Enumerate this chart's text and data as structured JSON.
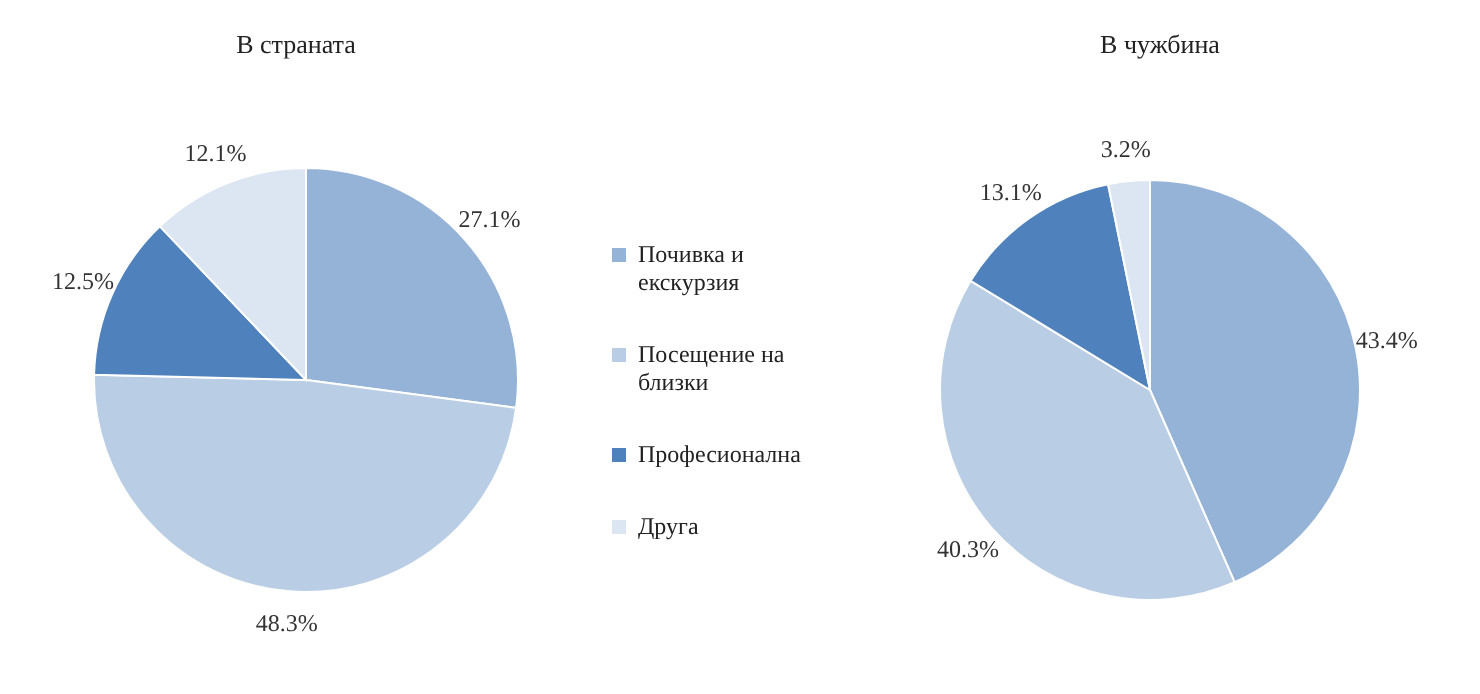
{
  "chart_data": [
    {
      "type": "pie",
      "title": "В страната",
      "categories": [
        "Почивка и екскурзия",
        "Посещение на близки",
        "Професионална",
        "Друга"
      ],
      "values": [
        27.1,
        48.3,
        12.5,
        12.1
      ],
      "value_labels": [
        "27.1%",
        "48.3%",
        "12.5%",
        "12.1%"
      ],
      "colors": [
        "#95b3d7",
        "#b9cde5",
        "#4f81bd",
        "#dce6f2"
      ],
      "legend": "right"
    },
    {
      "type": "pie",
      "title": "В чужбина",
      "categories": [
        null,
        null,
        null,
        null
      ],
      "values": [
        43.4,
        40.3,
        13.1,
        3.2
      ],
      "value_labels": [
        "43.4%",
        "40.3%",
        "13.1%",
        "3.2%"
      ],
      "colors": [
        "#95b3d7",
        "#b9cde5",
        "#4f81bd",
        "#dce6f2"
      ]
    }
  ]
}
